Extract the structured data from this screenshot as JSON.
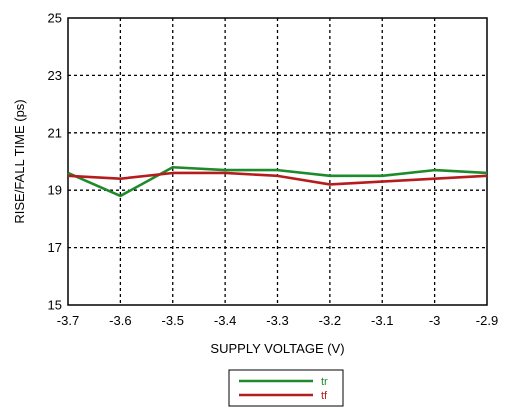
{
  "chart_data": {
    "type": "line",
    "title": "",
    "xlabel": "SUPPLY VOLTAGE (V)",
    "ylabel": "RISE/FALL TIME (ps)",
    "x": [
      -3.7,
      -3.6,
      -3.5,
      -3.4,
      -3.3,
      -3.2,
      -3.1,
      -3.0,
      -2.9
    ],
    "xtick_labels": [
      "-3.7",
      "-3.6",
      "-3.5",
      "-3.4",
      "-3.3",
      "-3.2",
      "-3.1",
      "-3",
      "-2.9"
    ],
    "xlim": [
      -3.7,
      -2.9
    ],
    "yticks": [
      15,
      17,
      19,
      21,
      23,
      25
    ],
    "ytick_labels": [
      "15",
      "17",
      "19",
      "21",
      "23",
      "25"
    ],
    "ylim": [
      15,
      25
    ],
    "grid": true,
    "grid_style": "dashed",
    "legend_position": "bottom-center",
    "series": [
      {
        "name": "tr",
        "color": "#1e8a2c",
        "values": [
          19.6,
          18.8,
          19.8,
          19.7,
          19.7,
          19.5,
          19.5,
          19.7,
          19.6
        ]
      },
      {
        "name": "tf",
        "color": "#b51d1d",
        "values": [
          19.5,
          19.4,
          19.6,
          19.6,
          19.5,
          19.2,
          19.3,
          19.4,
          19.5
        ]
      }
    ]
  }
}
